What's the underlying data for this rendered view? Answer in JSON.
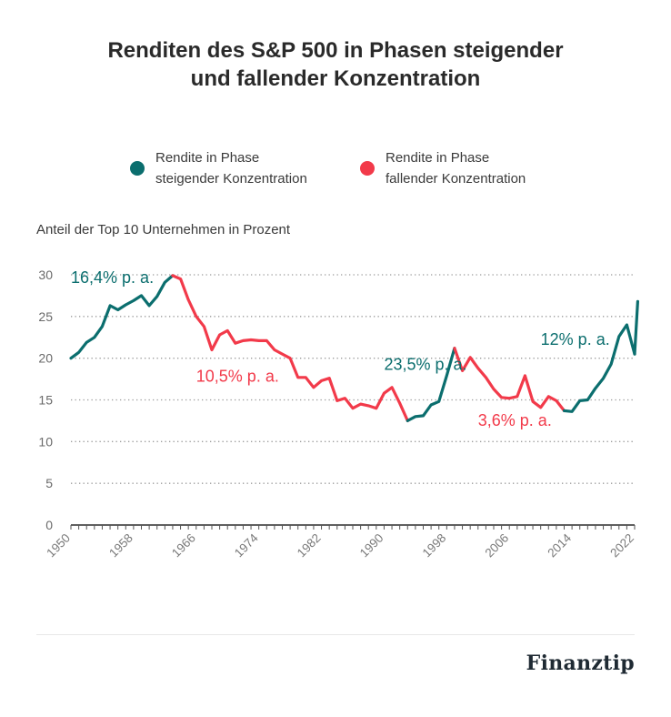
{
  "title_lines": [
    "Renditen des S&P 500 in Phasen steigender",
    "und fallender Konzentration"
  ],
  "legend": [
    {
      "lines": [
        "Rendite in Phase",
        "steigender Konzentration"
      ],
      "color": "#0b6e6e"
    },
    {
      "lines": [
        "Rendite in Phase",
        "fallender Konzentration"
      ],
      "color": "#f23a4a"
    }
  ],
  "subtitle": "Anteil der Top 10 Unternehmen in Prozent",
  "brand": "Finanztip",
  "chart_data": {
    "type": "line",
    "title": "Renditen des S&P 500 in Phasen steigender und fallender Konzentration",
    "ylabel": "Anteil der Top 10 Unternehmen in Prozent",
    "ylim": [
      0,
      30
    ],
    "yticks": [
      0,
      5,
      10,
      15,
      20,
      25,
      30
    ],
    "xlim": [
      1950,
      2022
    ],
    "xticks": [
      1950,
      1958,
      1966,
      1974,
      1982,
      1990,
      1998,
      2006,
      2014,
      2022
    ],
    "grid": true,
    "colors": {
      "rising": "#0b6e6e",
      "falling": "#f23a4a"
    },
    "series": [
      {
        "name": "Rendite in Phase steigender Konzentration",
        "phase": "rising",
        "x": [
          1950,
          1951,
          1952,
          1953,
          1954,
          1955,
          1956,
          1957,
          1958,
          1959,
          1960,
          1961,
          1962,
          1963
        ],
        "values": [
          20.0,
          20.7,
          21.9,
          22.5,
          23.8,
          26.3,
          25.8,
          26.4,
          26.9,
          27.5,
          26.3,
          27.4,
          29.1,
          29.9
        ]
      },
      {
        "name": "Rendite in Phase fallender Konzentration",
        "phase": "falling",
        "x": [
          1963,
          1964,
          1965,
          1966,
          1967,
          1968,
          1969,
          1970,
          1971,
          1972,
          1973,
          1974,
          1975,
          1976,
          1977,
          1978,
          1979,
          1980,
          1981,
          1982,
          1983,
          1984,
          1985,
          1986,
          1987,
          1988,
          1989,
          1990,
          1991,
          1992,
          1993
        ],
        "values": [
          29.9,
          29.5,
          27.0,
          25.0,
          23.8,
          21.0,
          22.8,
          23.3,
          21.8,
          22.1,
          22.2,
          22.1,
          22.1,
          21.0,
          20.5,
          20.0,
          17.7,
          17.7,
          16.5,
          17.3,
          17.6,
          14.9,
          15.2,
          14.0,
          14.5,
          14.3,
          14.0,
          15.8,
          16.5,
          14.6,
          12.5
        ]
      },
      {
        "name": "Rendite in Phase steigender Konzentration",
        "phase": "rising",
        "x": [
          1993,
          1994,
          1995,
          1996,
          1997,
          1998,
          1999
        ],
        "values": [
          12.5,
          13.0,
          13.1,
          14.4,
          14.8,
          17.9,
          21.2
        ]
      },
      {
        "name": "Rendite in Phase fallender Konzentration",
        "phase": "falling",
        "x": [
          1999,
          2000,
          2001,
          2002,
          2003,
          2004,
          2005,
          2006,
          2007,
          2008,
          2009,
          2010,
          2011,
          2012,
          2013
        ],
        "values": [
          21.2,
          18.5,
          20.1,
          18.8,
          17.7,
          16.3,
          15.3,
          15.2,
          15.4,
          17.9,
          14.8,
          14.1,
          15.4,
          14.9,
          13.7
        ]
      },
      {
        "name": "Rendite in Phase steigender Konzentration",
        "phase": "rising",
        "x": [
          2013,
          2014,
          2015,
          2016,
          2017,
          2018,
          2019,
          2020,
          2021,
          2022
        ],
        "values": [
          13.7,
          13.6,
          14.9,
          15.0,
          16.4,
          17.6,
          19.3,
          22.6,
          24.0,
          20.5
        ]
      },
      {
        "name": "Rendite in Phase steigender Konzentration",
        "phase": "rising",
        "x": [
          2022,
          2022.4
        ],
        "values": [
          20.5,
          26.8
        ]
      }
    ],
    "annotations": [
      {
        "text": "16,4% p. a.",
        "phase": "rising",
        "x": 1950,
        "y": 29.0
      },
      {
        "text": "10,5% p. a.",
        "phase": "falling",
        "x": 1966,
        "y": 17.2
      },
      {
        "text": "23,5% p. a.",
        "phase": "rising",
        "x": 1990,
        "y": 18.6
      },
      {
        "text": "3,6% p. a.",
        "phase": "falling",
        "x": 2002,
        "y": 11.9
      },
      {
        "text": "12% p. a.",
        "phase": "rising",
        "x": 2010,
        "y": 21.6
      }
    ]
  }
}
